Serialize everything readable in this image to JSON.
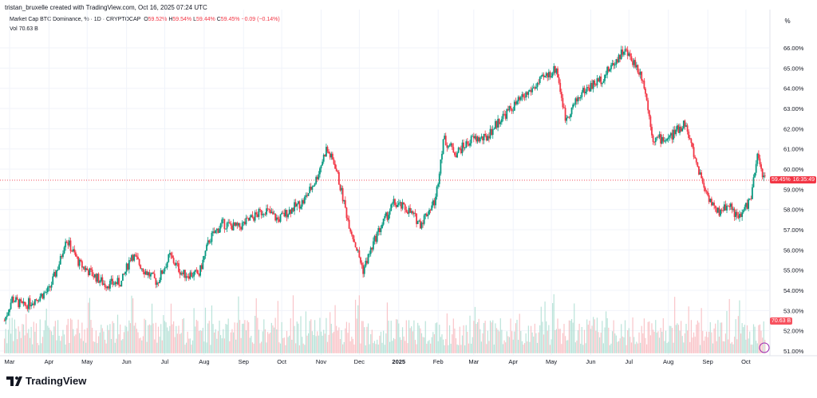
{
  "header": {
    "credit": "tristan_bruxelle created with TradingView.com, Oct 16, 2025 07:24 UTC",
    "symbol": "Market Cap BTC Dominance, % · 1D · CRYPTOCAP",
    "o_label": "O",
    "o": "59.52%",
    "h_label": "H",
    "h": "59.54%",
    "l_label": "L",
    "l": "59.44%",
    "c_label": "C",
    "c": "59.45%",
    "change": "−0.09 (−0.14%)",
    "vol_label": "Vol",
    "vol": "70.63 B"
  },
  "scale_button": "%",
  "price_tag": "59.45%",
  "countdown": "16:35:49",
  "volume_tag": "70.63 B",
  "logo": "TradingView",
  "colors": {
    "up": "#089981",
    "down": "#f23645"
  },
  "chart_data": {
    "type": "candlestick",
    "title": "Market Cap BTC Dominance, % · 1D · CRYPTOCAP",
    "ylim": [
      51,
      66.5
    ],
    "yticks": [
      "51.00%",
      "52.00%",
      "53.00%",
      "54.00%",
      "55.00%",
      "56.00%",
      "57.00%",
      "58.00%",
      "59.00%",
      "60.00%",
      "61.00%",
      "62.00%",
      "63.00%",
      "64.00%",
      "65.00%",
      "66.00%"
    ],
    "xticks": [
      [
        "Mar",
        "2024-03-01"
      ],
      [
        "Apr",
        "2024-04-01"
      ],
      [
        "May",
        "2024-05-01"
      ],
      [
        "Jun",
        "2024-06-01"
      ],
      [
        "Jul",
        "2024-07-01"
      ],
      [
        "Aug",
        "2024-08-01"
      ],
      [
        "Sep",
        "2024-09-01"
      ],
      [
        "Oct",
        "2024-10-01"
      ],
      [
        "Nov",
        "2024-11-01"
      ],
      [
        "Dec",
        "2024-12-01"
      ],
      [
        "2025",
        "2025-01-01"
      ],
      [
        "Feb",
        "2025-02-01"
      ],
      [
        "Mar",
        "2025-03-01"
      ],
      [
        "Apr",
        "2025-04-01"
      ],
      [
        "May",
        "2025-05-01"
      ],
      [
        "Jun",
        "2025-06-01"
      ],
      [
        "Jul",
        "2025-07-01"
      ],
      [
        "Aug",
        "2025-08-01"
      ],
      [
        "Sep",
        "2025-09-01"
      ],
      [
        "Oct",
        "2025-10-01"
      ]
    ],
    "closes": [
      [
        "2024-02-26",
        52.5
      ],
      [
        "2024-03-03",
        53.6
      ],
      [
        "2024-03-12",
        53.2
      ],
      [
        "2024-03-22",
        53.6
      ],
      [
        "2024-04-01",
        54.0
      ],
      [
        "2024-04-10",
        55.5
      ],
      [
        "2024-04-14",
        56.6
      ],
      [
        "2024-04-25",
        55.3
      ],
      [
        "2024-05-05",
        54.8
      ],
      [
        "2024-05-15",
        54.3
      ],
      [
        "2024-05-28",
        54.4
      ],
      [
        "2024-06-05",
        55.8
      ],
      [
        "2024-06-15",
        55.0
      ],
      [
        "2024-06-25",
        54.4
      ],
      [
        "2024-07-05",
        55.7
      ],
      [
        "2024-07-15",
        54.8
      ],
      [
        "2024-07-28",
        54.8
      ],
      [
        "2024-08-05",
        56.5
      ],
      [
        "2024-08-15",
        57.3
      ],
      [
        "2024-08-28",
        57.1
      ],
      [
        "2024-09-08",
        57.6
      ],
      [
        "2024-09-18",
        58.0
      ],
      [
        "2024-09-28",
        57.5
      ],
      [
        "2024-10-08",
        58.0
      ],
      [
        "2024-10-18",
        58.4
      ],
      [
        "2024-10-28",
        59.5
      ],
      [
        "2024-11-05",
        61.0
      ],
      [
        "2024-11-12",
        60.2
      ],
      [
        "2024-11-22",
        57.5
      ],
      [
        "2024-12-04",
        55.0
      ],
      [
        "2024-12-15",
        56.8
      ],
      [
        "2024-12-28",
        58.3
      ],
      [
        "2025-01-08",
        58.0
      ],
      [
        "2025-01-18",
        57.3
      ],
      [
        "2025-01-30",
        58.5
      ],
      [
        "2025-02-05",
        61.5
      ],
      [
        "2025-02-15",
        60.8
      ],
      [
        "2025-02-28",
        61.5
      ],
      [
        "2025-03-10",
        61.5
      ],
      [
        "2025-03-22",
        62.5
      ],
      [
        "2025-04-08",
        63.5
      ],
      [
        "2025-04-25",
        64.5
      ],
      [
        "2025-05-05",
        65.0
      ],
      [
        "2025-05-12",
        62.5
      ],
      [
        "2025-05-25",
        63.8
      ],
      [
        "2025-06-10",
        64.5
      ],
      [
        "2025-06-27",
        65.9
      ],
      [
        "2025-07-05",
        65.3
      ],
      [
        "2025-07-12",
        64.5
      ],
      [
        "2025-07-20",
        61.5
      ],
      [
        "2025-08-01",
        61.5
      ],
      [
        "2025-08-14",
        62.3
      ],
      [
        "2025-08-22",
        60.5
      ],
      [
        "2025-08-30",
        59.0
      ],
      [
        "2025-09-08",
        57.8
      ],
      [
        "2025-09-18",
        58.3
      ],
      [
        "2025-09-25",
        57.5
      ],
      [
        "2025-10-05",
        58.6
      ],
      [
        "2025-10-10",
        60.6
      ],
      [
        "2025-10-16",
        59.45
      ]
    ]
  }
}
